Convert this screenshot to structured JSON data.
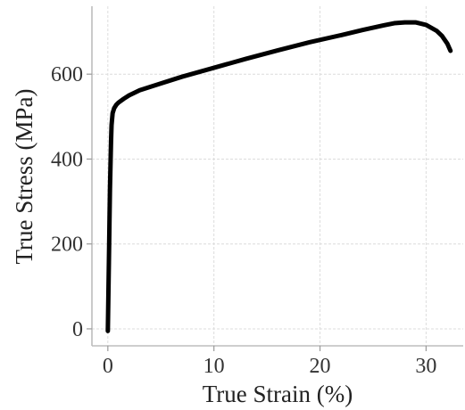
{
  "chart_data": {
    "type": "line",
    "title": "",
    "xlabel": "True Strain (%)",
    "ylabel": "True Stress (MPa)",
    "xlim": [
      -1.5,
      33.5
    ],
    "ylim": [
      -40,
      760
    ],
    "xticks": [
      0,
      10,
      20,
      30
    ],
    "yticks": [
      0,
      200,
      400,
      600
    ],
    "x_tick_labels": [
      "0",
      "10",
      "20",
      "30"
    ],
    "y_tick_labels": [
      "0",
      "200",
      "400",
      "600"
    ],
    "grid": true,
    "legend": "none",
    "series": [
      {
        "color": "#000000",
        "x": [
          0.0,
          0.1,
          0.2,
          0.3,
          0.35,
          0.45,
          0.6,
          0.8,
          1.0,
          1.5,
          2.0,
          3.0,
          5.0,
          7.0,
          10.0,
          13.0,
          16.0,
          19.0,
          22.0,
          24.0,
          26.0,
          27.0,
          28.0,
          29.0,
          30.0,
          31.0,
          31.5,
          32.0,
          32.3
        ],
        "y": [
          -5,
          160,
          330,
          440,
          480,
          508,
          520,
          528,
          533,
          542,
          550,
          562,
          578,
          594,
          615,
          636,
          656,
          675,
          692,
          704,
          715,
          720,
          722,
          722,
          716,
          702,
          690,
          672,
          655
        ]
      }
    ]
  }
}
